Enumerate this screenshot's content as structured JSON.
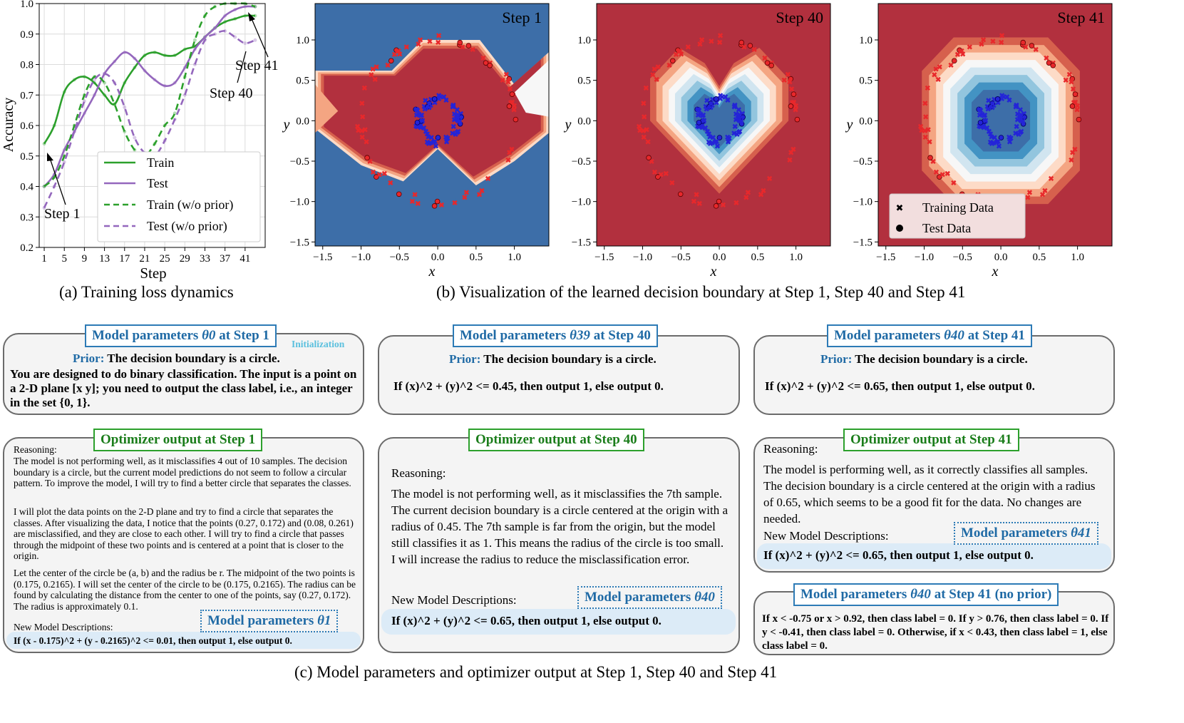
{
  "chart_data": [
    {
      "type": "line",
      "title": "",
      "xlabel": "Step",
      "ylabel": "Accuracy",
      "xlim": [
        0,
        45
      ],
      "ylim": [
        0.2,
        1.0
      ],
      "xticks": [
        "1",
        "5",
        "9",
        "13",
        "17",
        "21",
        "25",
        "29",
        "33",
        "37",
        "41"
      ],
      "yticks": [
        "0.2",
        "0.3",
        "0.4",
        "0.5",
        "0.6",
        "0.7",
        "0.8",
        "0.9",
        "1.0"
      ],
      "grid": true,
      "legend_position": "lower-right",
      "series": [
        {
          "name": "Train",
          "style": "solid",
          "color": "#2ca02c",
          "x": [
            1,
            3,
            5,
            7,
            9,
            11,
            13,
            15,
            17,
            19,
            21,
            23,
            25,
            27,
            29,
            31,
            33,
            35,
            37,
            39,
            41,
            43
          ],
          "values": [
            0.54,
            0.6,
            0.71,
            0.75,
            0.76,
            0.74,
            0.7,
            0.67,
            0.74,
            0.79,
            0.83,
            0.84,
            0.83,
            0.83,
            0.85,
            0.86,
            0.89,
            0.92,
            0.94,
            0.95,
            0.96,
            0.96
          ]
        },
        {
          "name": "Test",
          "style": "solid",
          "color": "#9467bd",
          "x": [
            1,
            3,
            5,
            7,
            9,
            11,
            13,
            15,
            17,
            19,
            21,
            23,
            25,
            27,
            29,
            31,
            33,
            35,
            37,
            39,
            41,
            43
          ],
          "values": [
            0.4,
            0.44,
            0.52,
            0.58,
            0.64,
            0.7,
            0.77,
            0.81,
            0.84,
            0.82,
            0.78,
            0.75,
            0.73,
            0.74,
            0.79,
            0.85,
            0.89,
            0.92,
            0.96,
            0.98,
            0.99,
            0.99
          ]
        },
        {
          "name": "Train (w/o prior)",
          "style": "dashed",
          "color": "#2ca02c",
          "x": [
            1,
            3,
            5,
            7,
            9,
            11,
            13,
            15,
            17,
            19,
            21,
            23,
            25,
            27,
            29,
            31,
            33,
            35,
            37,
            39,
            41,
            43
          ],
          "values": [
            0.4,
            0.43,
            0.5,
            0.6,
            0.7,
            0.76,
            0.74,
            0.67,
            0.58,
            0.52,
            0.5,
            0.54,
            0.6,
            0.64,
            0.76,
            0.88,
            0.96,
            0.99,
            1.0,
            1.0,
            1.0,
            0.99
          ]
        },
        {
          "name": "Test (w/o prior)",
          "style": "dashed",
          "color": "#9467bd",
          "x": [
            1,
            3,
            5,
            7,
            9,
            11,
            13,
            15,
            17,
            19,
            21,
            23,
            25,
            27,
            29,
            31,
            33,
            35,
            37,
            39,
            41,
            43
          ],
          "values": [
            0.33,
            0.4,
            0.48,
            0.58,
            0.68,
            0.75,
            0.77,
            0.74,
            0.66,
            0.56,
            0.51,
            0.5,
            0.55,
            0.62,
            0.7,
            0.8,
            0.88,
            0.9,
            0.91,
            0.89,
            0.87,
            0.88
          ]
        }
      ],
      "annotations": [
        "Step 1",
        "Step 40",
        "Step 41"
      ]
    },
    {
      "type": "heatmap",
      "title": "Step 1",
      "xlabel": "x",
      "ylabel": "y",
      "xlim": [
        -1.6,
        1.45
      ],
      "ylim": [
        -1.55,
        1.45
      ],
      "xticks": [
        "−1.5",
        "−1.0",
        "−0.5",
        "0.0",
        "0.5",
        "1.0"
      ],
      "yticks": [
        "−1.5",
        "−1.0",
        "−0.5",
        "0.0",
        "0.5",
        "1.0"
      ],
      "boundary": "bands (wrong)"
    },
    {
      "type": "heatmap",
      "title": "Step 40",
      "xlabel": "x",
      "ylabel": "y",
      "xlim": [
        -1.6,
        1.45
      ],
      "ylim": [
        -1.55,
        1.45
      ],
      "xticks": [
        "−1.5",
        "−1.0",
        "−0.5",
        "0.0",
        "0.5",
        "1.0"
      ],
      "yticks": [
        "−1.5",
        "−1.0",
        "−0.5",
        "0.0",
        "0.5",
        "1.0"
      ],
      "boundary_radius_sq": 0.45
    },
    {
      "type": "heatmap",
      "title": "Step 41",
      "xlabel": "x",
      "ylabel": "y",
      "xlim": [
        -1.6,
        1.45
      ],
      "ylim": [
        -1.55,
        1.45
      ],
      "xticks": [
        "−1.5",
        "−1.0",
        "−0.5",
        "0.0",
        "0.5",
        "1.0"
      ],
      "yticks": [
        "−1.5",
        "−1.0",
        "−0.5",
        "0.0",
        "0.5",
        "1.0"
      ],
      "boundary_radius_sq": 0.65,
      "legend": [
        "Training Data",
        "Test Data"
      ]
    }
  ],
  "captions": {
    "a": "(a) Training loss dynamics",
    "b": "(b) Visualization of the learned decision boundary at Step 1, Step 40 and Step 41",
    "c": "(c) Model parameters and optimizer output at Step 1, Step 40 and Step 41"
  },
  "cards": {
    "params_step1": {
      "title_pre": "Model parameters ",
      "title_sym": "θ0",
      "title_post": " at Step 1",
      "init": "Initialization",
      "prior_label": "Prior:",
      "prior_text": " The decision boundary is a circle.",
      "body": "You are designed to do binary classification. The input is a point on a 2-D plane [x y]; you need to output the class label, i.e., an integer in the set {0, 1}."
    },
    "params_step40": {
      "title_pre": "Model parameters ",
      "title_sym": "θ39",
      "title_post": " at Step 40",
      "prior_label": "Prior:",
      "prior_text": " The decision boundary is a circle.",
      "body": "If (x)^2 + (y)^2 <= 0.45, then output 1, else output 0."
    },
    "params_step41": {
      "title_pre": "Model parameters ",
      "title_sym": "θ40",
      "title_post": " at Step 41",
      "prior_label": "Prior:",
      "prior_text": " The decision boundary is a circle.",
      "body": "If (x)^2 + (y)^2 <= 0.65, then output 1, else output 0."
    },
    "opt_step1": {
      "title": "Optimizer output at Step 1",
      "reasoning": "Reasoning:",
      "p1": "The model is not performing well, as it misclassifies 4 out of 10 samples. The decision boundary is a circle, but the current model predictions do not seem to follow a circular pattern. To improve the model, I will try to find a better circle that separates the classes.",
      "p2": "I will plot the data points on the 2-D plane and try to find a circle that separates the classes. After visualizing the data, I notice that the points (0.27, 0.172) and (0.08, 0.261) are misclassified, and they are close to each other. I will try to find a circle that passes through the midpoint of these two points and is centered at a point that is closer to the origin.",
      "p3": "Let the center of the circle be (a, b) and the radius be r. The midpoint of the two points is (0.175, 0.2165). I will set the center of the circle to be (0.175, 0.2165). The radius can be found by calculating the distance from the center to one of the points, say (0.27, 0.172). The radius is approximately 0.1.",
      "new_desc": "New Model Descriptions:",
      "param_label_pre": "Model parameters ",
      "param_label_sym": "θ1",
      "new_params": "If (x - 0.175)^2 + (y - 0.2165)^2 <= 0.01, then output 1, else output 0."
    },
    "opt_step40": {
      "title": "Optimizer output at Step 40",
      "reasoning": "Reasoning:",
      "p1": "The model is not performing well, as it misclassifies the 7th sample. The current decision boundary is a circle centered at the origin with a radius of 0.45. The 7th sample is far from the origin, but the model still classifies it as 1. This means the radius of the circle is too small. I will increase the radius to reduce the misclassification error.",
      "new_desc": "New Model Descriptions:",
      "param_label_pre": "Model parameters ",
      "param_label_sym": "θ40",
      "new_params": "If (x)^2 + (y)^2 <= 0.65, then output 1, else output 0."
    },
    "opt_step41": {
      "title": "Optimizer output at Step 41",
      "reasoning": "Reasoning:",
      "p1": "The model is performing well, as it correctly classifies all samples. The decision boundary is a circle centered at the origin with a radius of 0.65, which seems to be a good fit for the data. No changes are needed.",
      "new_desc": "New Model Descriptions:",
      "param_label_pre": "Model parameters ",
      "param_label_sym": "θ41",
      "new_params": "If (x)^2 + (y)^2 <= 0.65, then output 1, else output 0."
    },
    "params_noprior": {
      "title_pre": "Model parameters ",
      "title_sym": "θ40",
      "title_post": " at Step 41 (no prior)",
      "body": "If x < -0.75 or x > 0.92, then class label = 0. If y > 0.76, then class label = 0. If y < -0.41, then class label = 0. Otherwise, if x < 0.43, then class label = 1, else class label = 0."
    }
  },
  "colors": {
    "red": "#b2303e",
    "blue": "#3d6ea8",
    "train_green": "#2ca02c",
    "test_purple": "#9467bd",
    "title_blue": "#1f6aa5",
    "title_green": "#1a7d1a"
  }
}
